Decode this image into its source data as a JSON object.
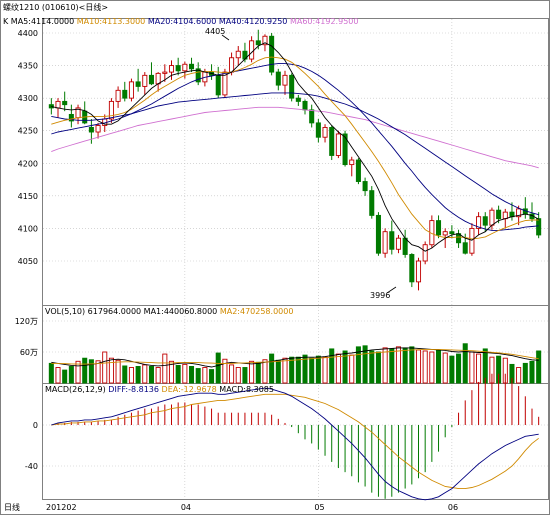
{
  "title": "螺纹1210 (010610)<日线>",
  "colors": {
    "up": "#c00000",
    "down": "#007a00",
    "ma5": "#000000",
    "ma10": "#d08a00",
    "ma20": "#000080",
    "ma60": "#d070d0",
    "vol_ma1": "#000000",
    "vol_ma2": "#d08a00",
    "grid": "#bfbfbf",
    "diff": "#000080",
    "dea": "#d08a00"
  },
  "price_panel": {
    "legend": [
      {
        "text": "K",
        "color": "#000000"
      },
      {
        "text": "MA5:4114.0000",
        "color": "#000000"
      },
      {
        "text": "MA10:4113.3000",
        "color": "#d08a00"
      },
      {
        "text": "MA20:4104.6000",
        "color": "#000080"
      },
      {
        "text": "MA40:4120.9250",
        "color": "#000080"
      },
      {
        "text": "MA60:4192.9500",
        "color": "#d070d0"
      }
    ],
    "y_ticks": [
      "4400",
      "4350",
      "4300",
      "4250",
      "4200",
      "4150",
      "4100",
      "4050"
    ],
    "high_label": "4405",
    "low_label": "3996"
  },
  "volume_panel": {
    "legend": [
      {
        "text": "VOL(5,10) 617964.0000",
        "color": "#000000"
      },
      {
        "text": "MA1:440060.8000",
        "color": "#000000"
      },
      {
        "text": "MA2:470258.0000",
        "color": "#d08a00"
      }
    ],
    "y_ticks": [
      "120万",
      "60万"
    ]
  },
  "macd_panel": {
    "legend": [
      {
        "text": "MACD(26,12,9)",
        "color": "#000000"
      },
      {
        "text": "DIFF:-8.8136",
        "color": "#000080"
      },
      {
        "text": "DEA:-12.9678",
        "color": "#d08a00"
      },
      {
        "text": "MACD:8.3085",
        "color": "#000000"
      }
    ],
    "y_ticks": [
      "0",
      "-40"
    ]
  },
  "x_axis": {
    "label": "日线",
    "ticks": [
      "201202",
      "04",
      "05",
      "06"
    ]
  },
  "chart_data": [
    {
      "type": "candlestick",
      "title": "螺纹1210 (010610)<日线>",
      "ylim": [
        4000,
        4420
      ],
      "series_ohlc": [
        [
          4290,
          4300,
          4275,
          4285
        ],
        [
          4285,
          4300,
          4270,
          4295
        ],
        [
          4295,
          4310,
          4280,
          4290
        ],
        [
          4275,
          4290,
          4255,
          4265
        ],
        [
          4270,
          4290,
          4260,
          4285
        ],
        [
          4280,
          4295,
          4260,
          4262
        ],
        [
          4255,
          4268,
          4230,
          4248
        ],
        [
          4248,
          4262,
          4238,
          4258
        ],
        [
          4258,
          4275,
          4248,
          4268
        ],
        [
          4268,
          4300,
          4262,
          4295
        ],
        [
          4295,
          4318,
          4285,
          4312
        ],
        [
          4312,
          4325,
          4295,
          4300
        ],
        [
          4300,
          4330,
          4295,
          4325
        ],
        [
          4325,
          4345,
          4310,
          4318
        ],
        [
          4318,
          4340,
          4305,
          4335
        ],
        [
          4335,
          4355,
          4320,
          4322
        ],
        [
          4322,
          4340,
          4310,
          4338
        ],
        [
          4338,
          4352,
          4325,
          4340
        ],
        [
          4340,
          4358,
          4328,
          4350
        ],
        [
          4350,
          4362,
          4335,
          4342
        ],
        [
          4342,
          4356,
          4330,
          4352
        ],
        [
          4352,
          4362,
          4340,
          4345
        ],
        [
          4345,
          4355,
          4320,
          4325
        ],
        [
          4325,
          4345,
          4318,
          4340
        ],
        [
          4340,
          4352,
          4328,
          4335
        ],
        [
          4335,
          4348,
          4300,
          4305
        ],
        [
          4305,
          4345,
          4300,
          4340
        ],
        [
          4340,
          4370,
          4335,
          4362
        ],
        [
          4362,
          4380,
          4350,
          4372
        ],
        [
          4372,
          4385,
          4355,
          4360
        ],
        [
          4360,
          4395,
          4355,
          4388
        ],
        [
          4388,
          4405,
          4375,
          4382
        ],
        [
          4382,
          4398,
          4372,
          4395
        ],
        [
          4395,
          4400,
          4335,
          4340
        ],
        [
          4340,
          4345,
          4312,
          4320
        ],
        [
          4320,
          4342,
          4305,
          4335
        ],
        [
          4335,
          4338,
          4295,
          4300
        ],
        [
          4300,
          4305,
          4288,
          4295
        ],
        [
          4295,
          4298,
          4275,
          4282
        ],
        [
          4282,
          4290,
          4255,
          4262
        ],
        [
          4262,
          4268,
          4232,
          4240
        ],
        [
          4240,
          4260,
          4232,
          4255
        ],
        [
          4255,
          4258,
          4205,
          4212
        ],
        [
          4212,
          4250,
          4208,
          4245
        ],
        [
          4245,
          4250,
          4195,
          4198
        ],
        [
          4198,
          4210,
          4180,
          4205
        ],
        [
          4205,
          4208,
          4168,
          4172
        ],
        [
          4172,
          4178,
          4150,
          4158
        ],
        [
          4158,
          4165,
          4115,
          4120
        ],
        [
          4120,
          4125,
          4058,
          4062
        ],
        [
          4062,
          4100,
          4055,
          4095
        ],
        [
          4095,
          4112,
          4060,
          4068
        ],
        [
          4068,
          4090,
          4062,
          4085
        ],
        [
          4085,
          4098,
          4055,
          4060
        ],
        [
          4060,
          4062,
          4010,
          4018
        ],
        [
          4018,
          4055,
          4005,
          4050
        ],
        [
          4050,
          4080,
          4045,
          4075
        ],
        [
          4075,
          4120,
          4070,
          4112
        ],
        [
          4112,
          4120,
          4085,
          4090
        ],
        [
          4090,
          4100,
          4070,
          4095
        ],
        [
          4095,
          4105,
          4085,
          4092
        ],
        [
          4092,
          4098,
          4070,
          4078
        ],
        [
          4078,
          4092,
          4060,
          4062
        ],
        [
          4062,
          4108,
          4058,
          4100
        ],
        [
          4100,
          4125,
          4090,
          4118
        ],
        [
          4118,
          4125,
          4095,
          4105
        ],
        [
          4105,
          4132,
          4098,
          4128
        ],
        [
          4128,
          4135,
          4108,
          4115
        ],
        [
          4115,
          4130,
          4100,
          4125
        ],
        [
          4125,
          4140,
          4112,
          4118
        ],
        [
          4118,
          4135,
          4105,
          4130
        ],
        [
          4130,
          4148,
          4115,
          4122
        ],
        [
          4122,
          4140,
          4110,
          4115
        ],
        [
          4115,
          4125,
          4085,
          4090
        ]
      ],
      "volume": [
        380,
        300,
        250,
        320,
        420,
        480,
        450,
        430,
        600,
        480,
        440,
        330,
        300,
        320,
        350,
        320,
        300,
        560,
        420,
        340,
        360,
        320,
        280,
        300,
        260,
        580,
        460,
        350,
        300,
        300,
        420,
        400,
        450,
        560,
        440,
        480,
        500,
        500,
        540,
        480,
        520,
        500,
        660,
        560,
        620,
        540,
        700,
        720,
        620,
        600,
        680,
        660,
        700,
        680,
        700,
        640,
        620,
        600,
        640,
        580,
        520,
        560,
        760,
        600,
        560,
        660,
        500,
        520,
        480,
        360,
        300,
        380,
        420,
        620
      ],
      "ma5": [
        4287,
        4285,
        4283,
        4282,
        4283,
        4281,
        4275,
        4265,
        4260,
        4260,
        4265,
        4275,
        4285,
        4295,
        4305,
        4315,
        4322,
        4328,
        4335,
        4338,
        4340,
        4342,
        4343,
        4340,
        4338,
        4335,
        4335,
        4340,
        4350,
        4360,
        4370,
        4380,
        4385,
        4380,
        4370,
        4358,
        4340,
        4322,
        4310,
        4300,
        4285,
        4270,
        4258,
        4248,
        4240,
        4225,
        4210,
        4195,
        4180,
        4160,
        4135,
        4115,
        4100,
        4085,
        4075,
        4072,
        4065,
        4070,
        4078,
        4085,
        4090,
        4092,
        4085,
        4082,
        4090,
        4095,
        4105,
        4112,
        4115,
        4118,
        4120,
        4122,
        4120,
        4114
      ],
      "ma10": [
        4260,
        4263,
        4266,
        4268,
        4270,
        4271,
        4272,
        4272,
        4272,
        4273,
        4275,
        4278,
        4283,
        4290,
        4297,
        4305,
        4312,
        4318,
        4324,
        4330,
        4335,
        4338,
        4340,
        4341,
        4341,
        4340,
        4339,
        4340,
        4343,
        4347,
        4352,
        4358,
        4362,
        4363,
        4362,
        4360,
        4355,
        4347,
        4338,
        4328,
        4318,
        4306,
        4295,
        4284,
        4273,
        4260,
        4246,
        4232,
        4218,
        4203,
        4187,
        4170,
        4152,
        4137,
        4122,
        4110,
        4098,
        4092,
        4088,
        4086,
        4086,
        4087,
        4086,
        4084,
        4085,
        4087,
        4092,
        4097,
        4101,
        4105,
        4109,
        4112,
        4113,
        4113
      ],
      "ma20": [
        4245,
        4248,
        4250,
        4252,
        4254,
        4256,
        4258,
        4260,
        4262,
        4265,
        4268,
        4272,
        4276,
        4281,
        4286,
        4291,
        4297,
        4303,
        4309,
        4315,
        4320,
        4325,
        4329,
        4332,
        4334,
        4336,
        4338,
        4340,
        4342,
        4344,
        4346,
        4348,
        4350,
        4352,
        4353,
        4353,
        4352,
        4350,
        4346,
        4341,
        4335,
        4328,
        4320,
        4312,
        4303,
        4294,
        4284,
        4273,
        4262,
        4250,
        4238,
        4226,
        4213,
        4200,
        4188,
        4175,
        4163,
        4152,
        4142,
        4132,
        4124,
        4117,
        4111,
        4106,
        4102,
        4099,
        4097,
        4097,
        4098,
        4099,
        4100,
        4102,
        4103,
        4104
      ],
      "ma40": [
        4272,
        4270,
        4268,
        4267,
        4266,
        4266,
        4266,
        4267,
        4268,
        4270,
        4272,
        4274,
        4276,
        4279,
        4282,
        4285,
        4288,
        4290,
        4292,
        4294,
        4295,
        4296,
        4297,
        4298,
        4299,
        4300,
        4301,
        4302,
        4303,
        4304,
        4305,
        4306,
        4307,
        4308,
        4308,
        4308,
        4308,
        4307,
        4306,
        4305,
        4303,
        4300,
        4297,
        4294,
        4291,
        4287,
        4283,
        4278,
        4273,
        4268,
        4262,
        4256,
        4250,
        4244,
        4237,
        4230,
        4223,
        4216,
        4209,
        4202,
        4195,
        4188,
        4181,
        4174,
        4167,
        4160,
        4153,
        4147,
        4141,
        4136,
        4131,
        4127,
        4124,
        4121
      ],
      "ma60": [
        4218,
        4222,
        4225,
        4228,
        4231,
        4234,
        4237,
        4240,
        4243,
        4246,
        4249,
        4252,
        4255,
        4258,
        4260,
        4262,
        4264,
        4266,
        4268,
        4270,
        4272,
        4274,
        4276,
        4278,
        4279,
        4280,
        4281,
        4282,
        4283,
        4284,
        4285,
        4286,
        4286,
        4286,
        4286,
        4285,
        4284,
        4283,
        4282,
        4281,
        4280,
        4279,
        4277,
        4275,
        4273,
        4271,
        4269,
        4267,
        4264,
        4261,
        4258,
        4255,
        4252,
        4249,
        4246,
        4243,
        4240,
        4237,
        4234,
        4231,
        4228,
        4225,
        4222,
        4219,
        4216,
        4213,
        4210,
        4207,
        4204,
        4202,
        4200,
        4198,
        4196,
        4193
      ],
      "vol_ma1": [
        400,
        380,
        360,
        340,
        330,
        340,
        360,
        380,
        420,
        450,
        460,
        450,
        420,
        390,
        360,
        340,
        330,
        340,
        360,
        380,
        390,
        380,
        360,
        330,
        310,
        340,
        380,
        400,
        390,
        380,
        370,
        380,
        400,
        420,
        440,
        460,
        480,
        490,
        500,
        500,
        500,
        510,
        530,
        550,
        570,
        580,
        600,
        620,
        640,
        650,
        660,
        670,
        680,
        680,
        680,
        670,
        660,
        650,
        640,
        630,
        610,
        600,
        610,
        600,
        590,
        590,
        580,
        570,
        550,
        530,
        500,
        470,
        450,
        440
      ],
      "vol_ma2": [
        380,
        380,
        375,
        370,
        365,
        365,
        370,
        375,
        385,
        395,
        405,
        410,
        410,
        405,
        400,
        395,
        390,
        390,
        390,
        395,
        398,
        398,
        395,
        390,
        385,
        380,
        378,
        380,
        385,
        390,
        395,
        400,
        405,
        410,
        420,
        430,
        440,
        450,
        460,
        470,
        480,
        490,
        500,
        510,
        520,
        535,
        550,
        565,
        580,
        590,
        600,
        610,
        620,
        630,
        640,
        645,
        650,
        650,
        650,
        645,
        640,
        635,
        630,
        625,
        615,
        605,
        595,
        585,
        570,
        555,
        535,
        510,
        490,
        470
      ],
      "diff": [
        0,
        2,
        3,
        4,
        4,
        5,
        5,
        6,
        7,
        8,
        10,
        12,
        14,
        16,
        18,
        20,
        22,
        24,
        26,
        28,
        29,
        30,
        31,
        31,
        31,
        30,
        30,
        31,
        32,
        33,
        34,
        35,
        36,
        35,
        33,
        31,
        28,
        24,
        20,
        16,
        11,
        6,
        0,
        -6,
        -12,
        -18,
        -25,
        -32,
        -40,
        -48,
        -55,
        -60,
        -64,
        -67,
        -70,
        -72,
        -73,
        -72,
        -70,
        -66,
        -62,
        -56,
        -50,
        -44,
        -38,
        -33,
        -28,
        -24,
        -20,
        -17,
        -14,
        -11,
        -10,
        -9
      ],
      "dea": [
        0,
        1,
        1,
        2,
        2,
        3,
        3,
        4,
        4,
        5,
        6,
        7,
        8,
        9,
        10,
        12,
        13,
        14,
        16,
        17,
        18,
        20,
        21,
        22,
        23,
        24,
        24,
        25,
        26,
        27,
        28,
        29,
        30,
        30,
        30,
        30,
        29,
        28,
        27,
        25,
        23,
        21,
        18,
        15,
        11,
        7,
        3,
        -2,
        -7,
        -13,
        -19,
        -25,
        -31,
        -36,
        -41,
        -46,
        -50,
        -54,
        -57,
        -60,
        -61,
        -62,
        -62,
        -61,
        -59,
        -56,
        -53,
        -49,
        -45,
        -40,
        -33,
        -25,
        -18,
        -13
      ],
      "macd": [
        0,
        2,
        2,
        3,
        3,
        3,
        3,
        4,
        5,
        5,
        8,
        10,
        12,
        14,
        16,
        16,
        18,
        20,
        20,
        22,
        22,
        20,
        20,
        18,
        16,
        12,
        12,
        12,
        12,
        12,
        12,
        12,
        12,
        10,
        6,
        2,
        -2,
        -8,
        -14,
        -18,
        -24,
        -30,
        -36,
        -42,
        -46,
        -50,
        -56,
        -60,
        -66,
        -70,
        -72,
        -70,
        -66,
        -62,
        -58,
        -52,
        -46,
        -36,
        -26,
        -12,
        -2,
        12,
        24,
        34,
        42,
        46,
        50,
        50,
        50,
        46,
        38,
        28,
        16,
        8
      ]
    }
  ]
}
